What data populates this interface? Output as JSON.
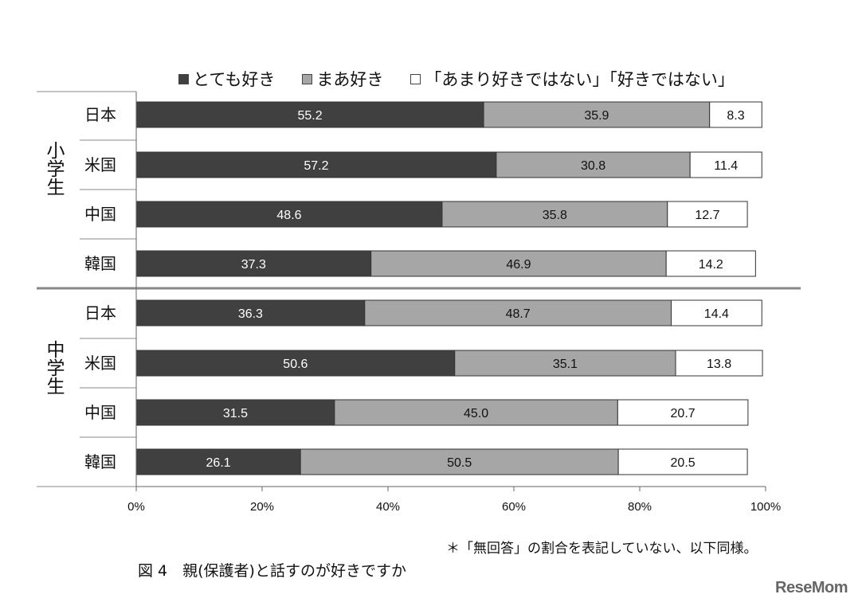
{
  "chart_data": {
    "type": "bar",
    "orientation": "horizontal",
    "stacked": true,
    "legend": [
      "とても好き",
      "まあ好き",
      "「あまり好きではない」「好きではない」"
    ],
    "legend_placement": "top",
    "groups": [
      {
        "label": "小学生",
        "categories": [
          "日本",
          "米国",
          "中国",
          "韓国"
        ]
      },
      {
        "label": "中学生",
        "categories": [
          "日本",
          "米国",
          "中国",
          "韓国"
        ]
      }
    ],
    "series": [
      {
        "name": "とても好き",
        "color": "#404040",
        "values": [
          55.2,
          57.2,
          48.6,
          37.3,
          36.3,
          50.6,
          31.5,
          26.1
        ]
      },
      {
        "name": "まあ好き",
        "color": "#a6a6a6",
        "values": [
          35.9,
          30.8,
          35.8,
          46.9,
          48.7,
          35.1,
          45.0,
          50.5
        ]
      },
      {
        "name": "「あまり好きではない」「好きではない」",
        "color": "#ffffff",
        "values": [
          8.3,
          11.4,
          12.7,
          14.2,
          14.4,
          13.8,
          20.7,
          20.5
        ]
      }
    ],
    "value_labels": [
      [
        "55.2",
        "57.2",
        "48.6",
        "37.3",
        "36.3",
        "50.6",
        "31.5",
        "26.1"
      ],
      [
        "35.9",
        "30.8",
        "35.8",
        "46.9",
        "48.7",
        "35.1",
        "45.0",
        "50.5"
      ],
      [
        "8.3",
        "11.4",
        "12.7",
        "14.2",
        "14.4",
        "13.8",
        "20.7",
        "20.5"
      ]
    ],
    "xlim": [
      0,
      100
    ],
    "xticks": [
      "0%",
      "20%",
      "40%",
      "60%",
      "80%",
      "100%"
    ],
    "grid": false
  },
  "footnote": "＊「無回答」の割合を表記していない、以下同様。",
  "caption": "図 4　親(保護者)と話すのが好きですか",
  "brand": "ReseMom"
}
